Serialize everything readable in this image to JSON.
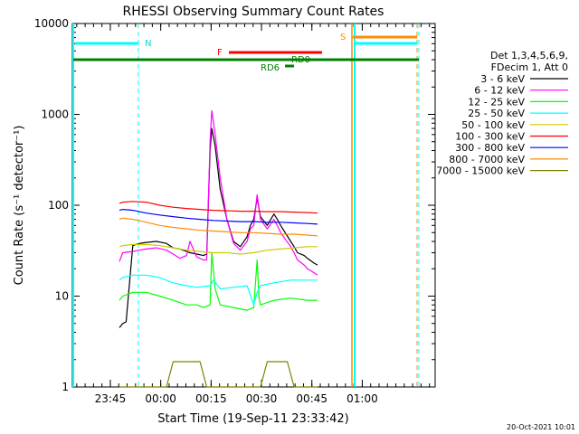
{
  "chart_data": {
    "type": "line",
    "title": "RHESSI Observing Summary Count Rates",
    "xlabel": "Start Time (19-Sep-11 23:33:42)",
    "ylabel": "Count Rate (s⁻¹ detector⁻¹)",
    "yscale": "log",
    "ylim": [
      1,
      10000
    ],
    "xlim_minutes_after_start": [
      0,
      108
    ],
    "x_ticks": [
      {
        "label": "23:45",
        "minutes": 11.3
      },
      {
        "label": "00:00",
        "minutes": 26.3
      },
      {
        "label": "00:15",
        "minutes": 41.3
      },
      {
        "label": "00:30",
        "minutes": 56.3
      },
      {
        "label": "00:45",
        "minutes": 71.3
      },
      {
        "label": "01:00",
        "minutes": 86.3
      }
    ],
    "y_ticks": [
      {
        "label": "1",
        "value": 1
      },
      {
        "label": "10",
        "value": 10
      },
      {
        "label": "100",
        "value": 100
      },
      {
        "label": "1000",
        "value": 1000
      },
      {
        "label": "10000",
        "value": 10000
      }
    ],
    "legend": {
      "position": "right",
      "header_line1": "Det 1,3,4,5,6,9,",
      "header_line2": "FDecim 1, Att 0"
    },
    "series": [
      {
        "name": "3 - 6 keV",
        "color": "#000000",
        "x": [
          14,
          15,
          16,
          18,
          20,
          22,
          25,
          28,
          30,
          32,
          34,
          35,
          37,
          39,
          40,
          41,
          41.5,
          42.5,
          44,
          46,
          48,
          50,
          52,
          53,
          54,
          55,
          56,
          58,
          60,
          61,
          62,
          65,
          66,
          67,
          69,
          70,
          72,
          73
        ],
        "y": [
          4.5,
          5,
          5.2,
          36,
          38,
          39,
          40,
          38,
          34,
          33,
          31,
          30,
          29,
          28,
          29,
          400,
          700,
          450,
          150,
          70,
          40,
          35,
          45,
          60,
          70,
          120,
          75,
          60,
          80,
          70,
          60,
          40,
          35,
          30,
          28,
          26,
          23,
          22
        ]
      },
      {
        "name": "6 - 12 keV",
        "color": "#ff00ff",
        "x": [
          14,
          15,
          18,
          20,
          22,
          25,
          28,
          30,
          32,
          34,
          35,
          37,
          39,
          40,
          41,
          41.5,
          42.5,
          44,
          46,
          48,
          50,
          52,
          53,
          54,
          55,
          56,
          58,
          60,
          61,
          62,
          65,
          66,
          67,
          69,
          70,
          72,
          73
        ],
        "y": [
          24,
          30,
          31,
          32,
          33,
          34,
          32,
          29,
          26,
          28,
          40,
          27,
          25,
          25,
          500,
          1100,
          600,
          200,
          70,
          38,
          32,
          40,
          55,
          60,
          130,
          70,
          55,
          70,
          60,
          50,
          35,
          30,
          25,
          22,
          20,
          18,
          17
        ]
      },
      {
        "name": "12 - 25 keV",
        "color": "#00ff00",
        "x": [
          14,
          15,
          18,
          22,
          26,
          30,
          34,
          37,
          39,
          41,
          41.5,
          42.5,
          44,
          48,
          52,
          54,
          55,
          55.5,
          56,
          60,
          65,
          70,
          73
        ],
        "y": [
          9,
          10,
          11,
          11,
          10,
          9,
          8,
          8,
          7.5,
          8,
          30,
          12,
          8,
          7.5,
          7,
          7.5,
          25,
          10,
          8,
          9,
          9.5,
          9,
          9
        ]
      },
      {
        "name": "25 - 50 keV",
        "color": "#00ffff",
        "x": [
          14,
          15,
          18,
          22,
          26,
          30,
          34,
          37,
          41,
          42,
          44,
          48,
          52,
          54,
          55,
          56,
          60,
          65,
          70,
          73
        ],
        "y": [
          15,
          16,
          17,
          17,
          16,
          14,
          13,
          12.5,
          13,
          15,
          12,
          12.5,
          13,
          8,
          11,
          13,
          14,
          15,
          15,
          15
        ]
      },
      {
        "name": "50 - 100 keV",
        "color": "#cccc00",
        "x": [
          14,
          15,
          18,
          22,
          26,
          30,
          34,
          38,
          42,
          46,
          50,
          54,
          58,
          62,
          66,
          70,
          73
        ],
        "y": [
          35,
          36,
          37,
          37,
          36,
          34,
          32,
          31,
          30,
          30,
          29,
          30,
          32,
          33,
          34,
          35,
          35
        ]
      },
      {
        "name": "100 - 300 keV",
        "color": "#ff0000",
        "x": [
          14,
          15,
          18,
          22,
          26,
          30,
          34,
          38,
          42,
          46,
          50,
          54,
          58,
          62,
          66,
          70,
          73
        ],
        "y": [
          105,
          108,
          110,
          108,
          100,
          95,
          92,
          90,
          88,
          87,
          86,
          86,
          85,
          85,
          84,
          83,
          82
        ]
      },
      {
        "name": "300 - 800 keV",
        "color": "#0000ff",
        "x": [
          14,
          15,
          18,
          22,
          26,
          30,
          34,
          38,
          42,
          46,
          50,
          54,
          58,
          62,
          66,
          70,
          73
        ],
        "y": [
          88,
          90,
          88,
          82,
          78,
          75,
          72,
          70,
          68,
          67,
          66,
          66,
          65,
          65,
          64,
          63,
          62
        ]
      },
      {
        "name": "800 - 7000 keV",
        "color": "#ff8c00",
        "x": [
          14,
          15,
          18,
          22,
          26,
          30,
          34,
          38,
          42,
          46,
          50,
          54,
          58,
          62,
          66,
          70,
          73
        ],
        "y": [
          70,
          72,
          70,
          65,
          60,
          57,
          55,
          53,
          52,
          51,
          50,
          50,
          49,
          48,
          48,
          47,
          46
        ]
      },
      {
        "name": "7000 - 15000 keV",
        "color": "#808000",
        "x": [
          14,
          16,
          20,
          28,
          30,
          32,
          34,
          36,
          38,
          40,
          44,
          48,
          52,
          56,
          58,
          60,
          62,
          64,
          66,
          70,
          73
        ],
        "y": [
          1,
          1,
          1,
          1,
          1.9,
          1.9,
          1.9,
          1.9,
          1.9,
          1,
          1,
          1,
          1,
          1,
          1.9,
          1.9,
          1.9,
          1.9,
          1,
          1,
          1
        ]
      }
    ],
    "annotations": {
      "night_line_label": "N",
      "saa_line_label": "S",
      "flare_bar_label": "F",
      "rd0_label": "RD0",
      "rd6_label": "RD6"
    }
  },
  "page": {
    "timestamp": "20-Oct-2021 10:01"
  }
}
